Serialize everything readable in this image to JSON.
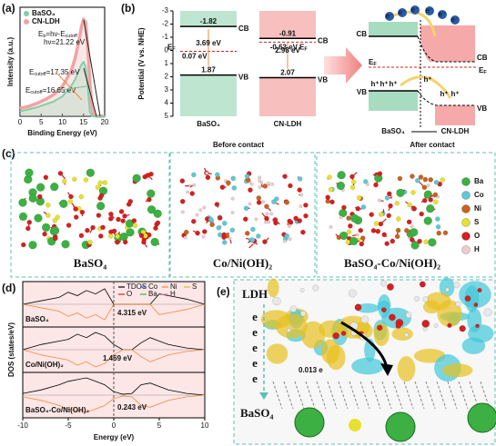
{
  "panels": {
    "a": {
      "tag": "(a)",
      "type": "line",
      "xlabel": "Binding Energy (eV)",
      "ylabel": "Intensity (a.u.)",
      "xlim": [
        0,
        20
      ],
      "xticks": [
        0,
        5,
        10,
        15,
        20
      ],
      "ylim": [
        0,
        1.1
      ],
      "series": [
        {
          "name": "BaSO₄",
          "color": "#7fcfa8",
          "x": [
            0,
            2,
            4,
            6,
            8,
            10,
            12,
            13,
            14,
            14.5,
            15,
            15.5,
            16,
            16.5,
            17,
            17.35,
            18,
            20
          ],
          "values": [
            0.05,
            0.07,
            0.09,
            0.12,
            0.15,
            0.2,
            0.3,
            0.37,
            0.47,
            0.52,
            0.55,
            0.5,
            0.3,
            0.05,
            0,
            0,
            0,
            0
          ]
        },
        {
          "name": "CN-LDH",
          "color": "#f2a2a2",
          "x": [
            0,
            2,
            4,
            6,
            8,
            10,
            12,
            13,
            14,
            14.5,
            15,
            15.5,
            16,
            16.5,
            17,
            17.35,
            18,
            20
          ],
          "values": [
            0.08,
            0.1,
            0.13,
            0.17,
            0.22,
            0.3,
            0.45,
            0.58,
            0.78,
            0.9,
            0.98,
            0.95,
            0.7,
            0.35,
            0.1,
            0.02,
            0,
            0
          ]
        }
      ],
      "annotations": [
        {
          "parts": [
            "E",
            "b",
            "=hν-E",
            "cutoff"
          ]
        },
        {
          "parts": [
            "hν=21.22 eV"
          ]
        },
        {
          "parts": [
            "E",
            "cutoff",
            "=17.35 eV"
          ],
          "color": "#f08a3c"
        },
        {
          "parts": [
            "E",
            "cutoff",
            "=16.65 eV"
          ],
          "color": "#6cc596"
        }
      ]
    },
    "b": {
      "tag": "(b)",
      "ylabel": "Potential (V vs. NHE)",
      "ylim": [
        -3,
        5
      ],
      "yticks": [
        -3,
        -2,
        -1,
        0,
        1,
        2,
        3,
        4,
        5
      ],
      "materials": [
        {
          "name": "BaSO₄",
          "color": "#a8dcc0",
          "cb": -1.82,
          "vb": 1.87,
          "ef": {
            "value": 0.07,
            "label": "0.07 eV"
          },
          "gap": {
            "value": 3.69,
            "label": "3.69 eV"
          }
        },
        {
          "name": "CN-LDH",
          "color": "#f6a9a9",
          "cb": -0.91,
          "vb": 2.07,
          "ef": {
            "value": -0.63,
            "label": "-0.63 eV"
          },
          "gap": {
            "value": 2.98,
            "label": "2.98 eV"
          }
        }
      ],
      "band_labels": {
        "cb": "CB",
        "vb": "VB",
        "ef": [
          "E",
          "F"
        ]
      },
      "before": "Before contact",
      "after": "After contact",
      "after_labels": {
        "materials": [
          "BaSO₄",
          "CN-LDH"
        ],
        "electron": "e⁻",
        "hole": "h⁺"
      }
    },
    "c": {
      "tag": "(c)",
      "structures": [
        {
          "label": "BaSO₄"
        },
        {
          "label": "Co/Ni(OH)₂"
        },
        {
          "label": "BaSO₄-Co/Ni(OH)₂"
        }
      ],
      "legend": [
        {
          "name": "Ba",
          "color": "#3cb043"
        },
        {
          "name": "Co",
          "color": "#5fc7d6"
        },
        {
          "name": "Ni",
          "color": "#c8621e"
        },
        {
          "name": "S",
          "color": "#e8e030"
        },
        {
          "name": "O",
          "color": "#d42020"
        },
        {
          "name": "H",
          "color": "#f0cccc"
        }
      ]
    },
    "d": {
      "tag": "(d)",
      "xlabel": "Energy (eV)",
      "ylabel": "DOS (states/eV)",
      "xlim": [
        -10,
        10
      ],
      "xticks": [
        -10,
        -5,
        0,
        5,
        10
      ],
      "fermi_level": 0,
      "legend": [
        {
          "name": "TDOS",
          "color": "#000000"
        },
        {
          "name": "Co",
          "color": "#3a6fd8"
        },
        {
          "name": "Ni",
          "color": "#f08a3c"
        },
        {
          "name": "S",
          "color": "#d8c020"
        },
        {
          "name": "O",
          "color": "#d42020"
        },
        {
          "name": "Ba",
          "color": "#3cb043"
        },
        {
          "name": "H",
          "color": "#e890b0"
        }
      ],
      "x": [
        -10,
        -8,
        -6,
        -5,
        -4,
        -3,
        -2,
        -1,
        0,
        1,
        2,
        3,
        4,
        5,
        6,
        8,
        10
      ],
      "subpanels": [
        {
          "label": "BaSO₄",
          "gap": {
            "value": 4.315,
            "label": "4.315 eV"
          },
          "tdos": [
            0,
            0.2,
            0.4,
            0.7,
            0.5,
            0.8,
            0.6,
            0.9,
            0,
            0,
            0,
            0,
            0,
            0.6,
            0.5,
            0.3,
            0
          ]
        },
        {
          "label": "Co/Ni(OH)₂",
          "gap": {
            "value": 1.469,
            "label": "1.469 eV"
          },
          "tdos": [
            0,
            0.3,
            0.5,
            0.6,
            0.9,
            0.7,
            1,
            0.8,
            0.3,
            0,
            0,
            0.4,
            0.7,
            0.5,
            0.3,
            0.1,
            0
          ]
        },
        {
          "label": "BaSO₄-Co/Ni(OH)₂",
          "gap": {
            "value": 0.243,
            "label": "0.243 eV"
          },
          "tdos": [
            0.1,
            0.3,
            0.6,
            0.8,
            0.9,
            1,
            0.8,
            0.6,
            0.2,
            0.05,
            0.1,
            0.6,
            0.7,
            0.5,
            0.3,
            0.1,
            0
          ]
        }
      ]
    },
    "e": {
      "tag": "(e)",
      "top": "LDH",
      "electrons": [
        "e",
        "e",
        "e",
        "e",
        "e"
      ],
      "bottom": "BaSO₄",
      "transfer": "0.013 e"
    }
  }
}
